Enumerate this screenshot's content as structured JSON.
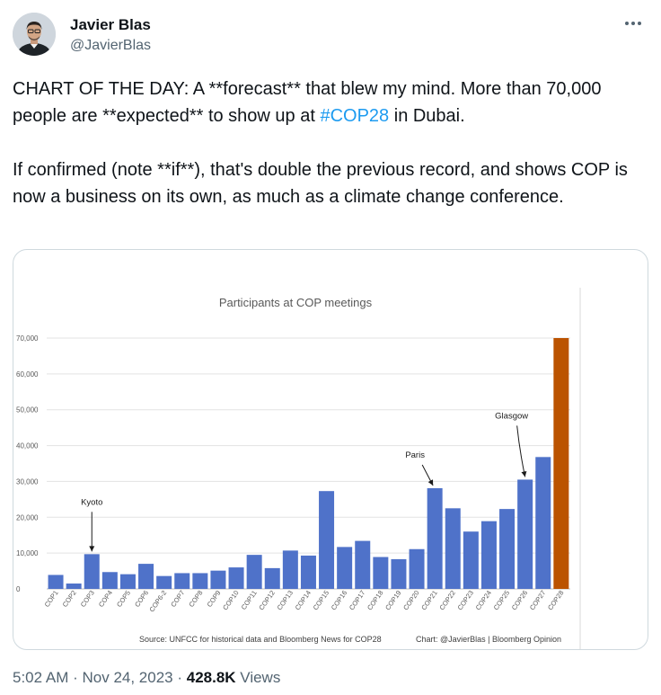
{
  "author": {
    "name": "Javier Blas",
    "handle": "@JavierBlas",
    "avatar_icon": "avatar-photo"
  },
  "tweet": {
    "p1_before": "CHART OF THE DAY: A **forecast** that blew my mind. More than 70,000 people are **expected** to show up at ",
    "hashtag": "#COP28",
    "p1_after": " in Dubai.",
    "p2": "If confirmed (note **if**), that's double the previous record, and shows COP is now a business on its own, as much as a climate change conference."
  },
  "meta": {
    "time": "5:02 AM",
    "separator1": " · ",
    "date": "Nov 24, 2023",
    "separator2": " · ",
    "views_count": "428.8K",
    "views_label": " Views"
  },
  "colors": {
    "bar": "#4f72c9",
    "highlight_bar": "#bb5300",
    "hashtag": "#1d9bf0"
  },
  "chart_data": {
    "type": "bar",
    "title": "Participants at COP meetings",
    "categories": [
      "COP1",
      "COP2",
      "COP3",
      "COP4",
      "COP5",
      "COP6",
      "COP6-2",
      "COP7",
      "COP8",
      "COP9",
      "COP10",
      "COP11",
      "COP12",
      "COP13",
      "COP14",
      "COP15",
      "COP16",
      "COP17",
      "COP18",
      "COP19",
      "COP20",
      "COP21",
      "COP22",
      "COP23",
      "COP24",
      "COP25",
      "COP26",
      "COP27",
      "COP28"
    ],
    "values": [
      3900,
      1500,
      9700,
      4700,
      4100,
      7000,
      3600,
      4400,
      4400,
      5100,
      6000,
      9500,
      5800,
      10700,
      9300,
      27300,
      11700,
      13400,
      8900,
      8300,
      11100,
      28100,
      22500,
      16000,
      18900,
      22300,
      30500,
      36800,
      70000
    ],
    "highlight_index": 28,
    "ylim": [
      0,
      70000
    ],
    "yticks": [
      "0",
      "10,000",
      "20,000",
      "30,000",
      "40,000",
      "50,000",
      "60,000",
      "70,000"
    ],
    "ytick_values": [
      0,
      10000,
      20000,
      30000,
      40000,
      50000,
      60000,
      70000
    ],
    "grid": true,
    "annotations": [
      {
        "text": "Kyoto",
        "category": "COP3"
      },
      {
        "text": "Paris",
        "category": "COP21"
      },
      {
        "text": "Glasgow",
        "category": "COP26"
      }
    ],
    "source": "Source: UNFCC for historical data and Bloomberg News for COP28",
    "credit": "Chart: @JavierBlas | Bloomberg Opinion"
  }
}
